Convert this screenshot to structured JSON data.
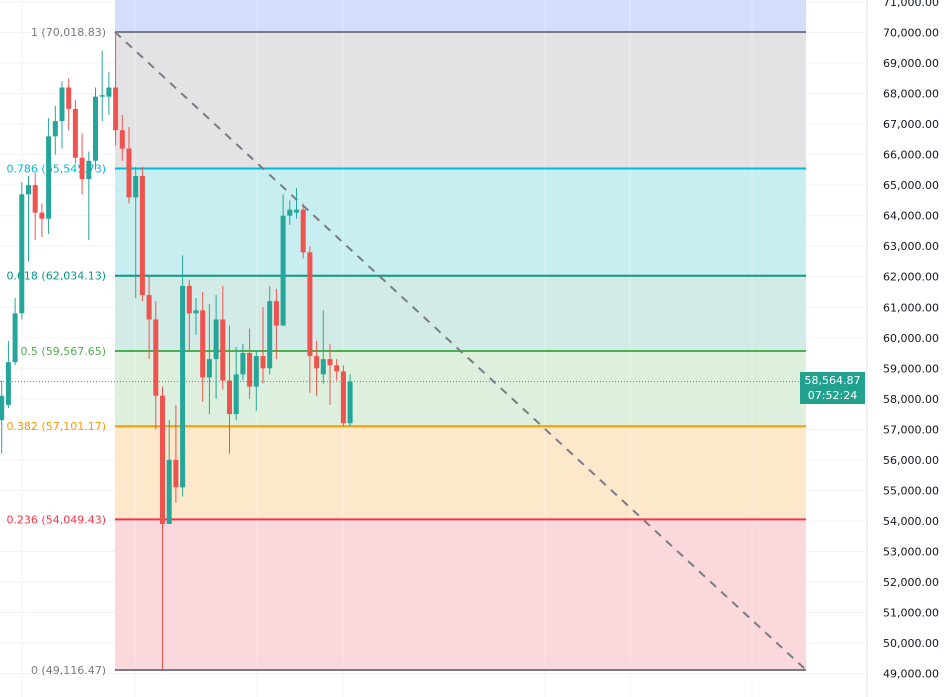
{
  "chart_data": {
    "type": "candlestick",
    "title": "",
    "ylim": [
      48700,
      71100
    ],
    "y_ticks": [
      49000,
      50000,
      51000,
      52000,
      53000,
      54000,
      55000,
      56000,
      57000,
      58000,
      59000,
      60000,
      61000,
      62000,
      63000,
      64000,
      65000,
      66000,
      67000,
      68000,
      69000,
      70000,
      71000
    ],
    "y_tick_labels": [
      "49,000.00",
      "50,000.00",
      "51,000.00",
      "52,000.00",
      "53,000.00",
      "54,000.00",
      "55,000.00",
      "56,000.00",
      "57,000.00",
      "58,000.00",
      "59,000.00",
      "60,000.00",
      "61,000.00",
      "62,000.00",
      "63,000.00",
      "64,000.00",
      "65,000.00",
      "66,000.00",
      "67,000.00",
      "68,000.00",
      "69,000.00",
      "70,000.00",
      "71,000.00"
    ],
    "grid": true,
    "colors": {
      "up": "#26a69a",
      "down": "#ef5350"
    },
    "candles": [
      [
        57300,
        58600,
        56200,
        58100
      ],
      [
        57800,
        59900,
        57700,
        59200
      ],
      [
        59200,
        61300,
        59100,
        60800
      ],
      [
        60800,
        65100,
        60600,
        64700
      ],
      [
        64700,
        65300,
        62500,
        65000
      ],
      [
        65000,
        65400,
        63200,
        64100
      ],
      [
        64100,
        64400,
        63300,
        63900
      ],
      [
        63900,
        67200,
        63400,
        66600
      ],
      [
        66600,
        67600,
        66000,
        67100
      ],
      [
        67100,
        68400,
        66200,
        68200
      ],
      [
        68200,
        68500,
        66800,
        67500
      ],
      [
        67500,
        67800,
        65700,
        65900
      ],
      [
        65900,
        66700,
        64700,
        65200
      ],
      [
        65200,
        66100,
        63200,
        65800
      ],
      [
        65800,
        68200,
        65500,
        67900
      ],
      [
        67900,
        69400,
        67100,
        67950
      ],
      [
        67900,
        68700,
        67300,
        68200
      ],
      [
        68200,
        70018.83,
        66300,
        66800
      ],
      [
        66800,
        67300,
        65800,
        66200
      ],
      [
        66200,
        66900,
        64400,
        64600
      ],
      [
        64600,
        65600,
        61300,
        65300
      ],
      [
        65300,
        65600,
        61200,
        61400
      ],
      [
        61400,
        62000,
        59300,
        60600
      ],
      [
        60600,
        61200,
        57000,
        58100
      ],
      [
        58100,
        58400,
        49116.47,
        53900
      ],
      [
        53900,
        57300,
        53900,
        56000
      ],
      [
        56000,
        57800,
        54600,
        55100
      ],
      [
        55100,
        62700,
        54800,
        61700
      ],
      [
        61700,
        61900,
        59600,
        60800
      ],
      [
        60800,
        61300,
        60100,
        60900
      ],
      [
        60900,
        61500,
        57900,
        58700
      ],
      [
        58700,
        61100,
        57500,
        59300
      ],
      [
        59300,
        61400,
        58000,
        60600
      ],
      [
        60600,
        61700,
        58300,
        58600
      ],
      [
        58600,
        60400,
        56200,
        57500
      ],
      [
        57500,
        59700,
        57300,
        58800
      ],
      [
        58800,
        59800,
        58600,
        59500
      ],
      [
        59500,
        60300,
        58000,
        58400
      ],
      [
        58400,
        59600,
        57600,
        59400
      ],
      [
        59400,
        61000,
        58500,
        59000
      ],
      [
        59000,
        61700,
        58800,
        61200
      ],
      [
        61200,
        61600,
        59300,
        60400
      ],
      [
        60400,
        64700,
        60400,
        64000
      ],
      [
        64000,
        64500,
        63700,
        64200
      ],
      [
        64100,
        64900,
        63900,
        64200
      ],
      [
        64200,
        64400,
        62600,
        62800
      ],
      [
        62800,
        63000,
        58200,
        59400
      ],
      [
        59400,
        59900,
        58100,
        59000
      ],
      [
        58800,
        60900,
        58500,
        59300
      ],
      [
        59300,
        59800,
        57800,
        59100
      ],
      [
        59100,
        59300,
        58600,
        58900
      ],
      [
        58900,
        59100,
        57100,
        57200
      ],
      [
        57200,
        58800,
        57100,
        58564.87
      ]
    ],
    "candle_format": [
      "open",
      "high",
      "low",
      "close"
    ],
    "fib_retracement": {
      "levels": [
        {
          "ratio": 1,
          "price": 70018.83,
          "label": "1 (70,018.83)",
          "color": "#787b86",
          "fill": "#e3e3e6"
        },
        {
          "ratio": 0.786,
          "price": 65545.73,
          "label": "0.786 (65,545.73)",
          "color": "#00bcd4",
          "fill": "#c8eef2"
        },
        {
          "ratio": 0.618,
          "price": 62034.13,
          "label": "0.618 (62,034.13)",
          "color": "#089981",
          "fill": "#d2ebe6"
        },
        {
          "ratio": 0.5,
          "price": 59567.65,
          "label": "0.5 (59,567.65)",
          "color": "#4caf50",
          "fill": "#dcf0dd"
        },
        {
          "ratio": 0.382,
          "price": 57101.17,
          "label": "0.382 (57,101.17)",
          "color": "#ff9800",
          "fill": "#fde8cc"
        },
        {
          "ratio": 0.236,
          "price": 54049.43,
          "label": "0.236 (54,049.43)",
          "color": "#f23645",
          "fill": "#fbd8db"
        },
        {
          "ratio": 0,
          "price": 49116.47,
          "label": "0 (49,116.47)",
          "color": "#787b86",
          "fill": null
        }
      ],
      "above_fill": "#d3defb",
      "trend_line": {
        "from": 70018.83,
        "to": 49116.47,
        "style": "dashed",
        "color": "#787b86"
      }
    },
    "current_price": {
      "value": "58,564.87",
      "price": 58564.87,
      "countdown": "07:52:24",
      "color": "#22a18f"
    }
  }
}
